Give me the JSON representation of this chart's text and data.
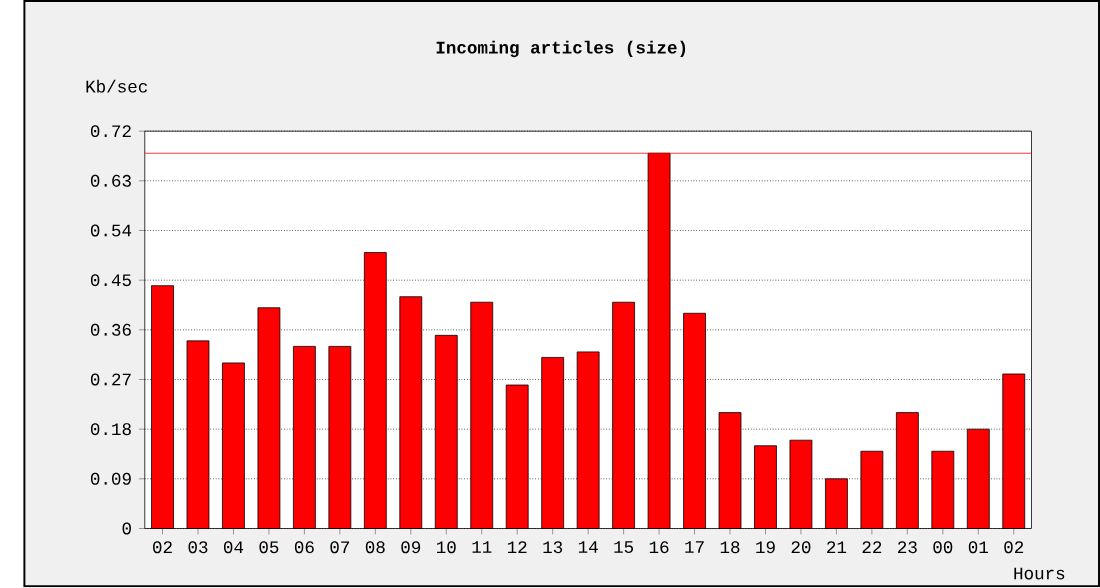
{
  "chart_data": {
    "type": "bar",
    "title": "Incoming articles (size)",
    "xlabel": "Hours",
    "ylabel": "Kb/sec",
    "categories": [
      "02",
      "03",
      "04",
      "05",
      "06",
      "07",
      "08",
      "09",
      "10",
      "11",
      "12",
      "13",
      "14",
      "15",
      "16",
      "17",
      "18",
      "19",
      "20",
      "21",
      "22",
      "23",
      "00",
      "01",
      "02"
    ],
    "values": [
      0.44,
      0.34,
      0.3,
      0.4,
      0.33,
      0.33,
      0.5,
      0.42,
      0.35,
      0.41,
      0.26,
      0.31,
      0.32,
      0.41,
      0.68,
      0.39,
      0.21,
      0.15,
      0.16,
      0.09,
      0.14,
      0.21,
      0.14,
      0.18,
      0.28
    ],
    "color": "#ff0000",
    "ylim": [
      0,
      0.72
    ],
    "yticks": [
      0,
      0.09,
      0.18,
      0.27,
      0.36,
      0.45,
      0.54,
      0.63,
      0.72
    ],
    "grid": "y",
    "ref_lines": [
      {
        "axis": "y",
        "value": 0.68,
        "color": "#ff0000"
      }
    ]
  }
}
